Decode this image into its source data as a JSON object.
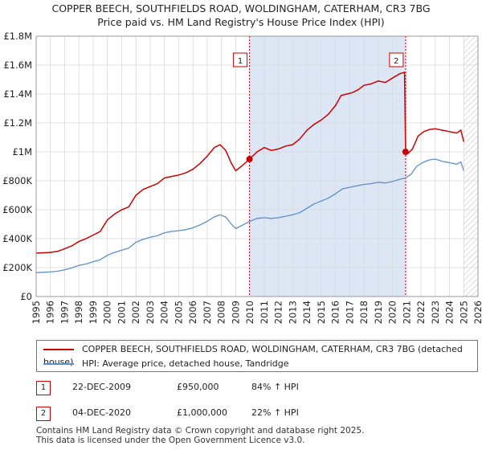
{
  "title": {
    "line1": "COPPER BEECH, SOUTHFIELDS ROAD, WOLDINGHAM, CATERHAM, CR3 7BG",
    "line2": "Price paid vs. HM Land Registry's House Price Index (HPI)"
  },
  "colors": {
    "property": "#cc0000",
    "hpi": "#5b8fc9",
    "shade": "#dce6f5",
    "grid": "#d9d9d9"
  },
  "chart_data": {
    "type": "line",
    "xlim": [
      1995,
      2026
    ],
    "ylim": [
      0,
      1800000
    ],
    "xticks": [
      "1995",
      "1996",
      "1997",
      "1998",
      "1999",
      "2000",
      "2001",
      "2002",
      "2003",
      "2004",
      "2005",
      "2006",
      "2007",
      "2008",
      "2009",
      "2010",
      "2011",
      "2012",
      "2013",
      "2014",
      "2015",
      "2016",
      "2017",
      "2018",
      "2019",
      "2020",
      "2021",
      "2022",
      "2023",
      "2024",
      "2025",
      "2026"
    ],
    "yticks": [
      {
        "value": 0,
        "label": "£0"
      },
      {
        "value": 200000,
        "label": "£200K"
      },
      {
        "value": 400000,
        "label": "£400K"
      },
      {
        "value": 600000,
        "label": "£600K"
      },
      {
        "value": 800000,
        "label": "£800K"
      },
      {
        "value": 1000000,
        "label": "£1M"
      },
      {
        "value": 1200000,
        "label": "£1.2M"
      },
      {
        "value": 1400000,
        "label": "£1.4M"
      },
      {
        "value": 1600000,
        "label": "£1.6M"
      },
      {
        "value": 1800000,
        "label": "£1.8M"
      }
    ],
    "shaded_region": [
      2009.97,
      2020.92
    ],
    "hatched_region": [
      2025.0,
      2026
    ],
    "markers": [
      {
        "label": "1",
        "x": 2009.97,
        "y": 950000
      },
      {
        "label": "2",
        "x": 2020.92,
        "y": 1000000
      }
    ],
    "series": [
      {
        "name": "COPPER BEECH, SOUTHFIELDS ROAD, WOLDINGHAM, CATERHAM, CR3 7BG (detached house)",
        "color": "#cc0000",
        "points": [
          [
            1995.0,
            300000
          ],
          [
            1996.0,
            305000
          ],
          [
            1996.5,
            312000
          ],
          [
            1997.0,
            330000
          ],
          [
            1997.5,
            350000
          ],
          [
            1998.0,
            380000
          ],
          [
            1998.5,
            400000
          ],
          [
            1999.0,
            425000
          ],
          [
            1999.5,
            450000
          ],
          [
            2000.0,
            530000
          ],
          [
            2000.5,
            570000
          ],
          [
            2001.0,
            600000
          ],
          [
            2001.5,
            620000
          ],
          [
            2002.0,
            700000
          ],
          [
            2002.5,
            740000
          ],
          [
            2003.0,
            760000
          ],
          [
            2003.5,
            780000
          ],
          [
            2004.0,
            820000
          ],
          [
            2004.5,
            830000
          ],
          [
            2005.0,
            840000
          ],
          [
            2005.5,
            855000
          ],
          [
            2006.0,
            880000
          ],
          [
            2006.5,
            920000
          ],
          [
            2007.0,
            970000
          ],
          [
            2007.5,
            1030000
          ],
          [
            2007.9,
            1050000
          ],
          [
            2008.3,
            1010000
          ],
          [
            2008.7,
            920000
          ],
          [
            2009.0,
            870000
          ],
          [
            2009.4,
            900000
          ],
          [
            2009.97,
            950000
          ],
          [
            2010.5,
            1000000
          ],
          [
            2011.0,
            1030000
          ],
          [
            2011.5,
            1010000
          ],
          [
            2012.0,
            1020000
          ],
          [
            2012.5,
            1040000
          ],
          [
            2013.0,
            1050000
          ],
          [
            2013.5,
            1090000
          ],
          [
            2014.0,
            1150000
          ],
          [
            2014.5,
            1190000
          ],
          [
            2015.0,
            1220000
          ],
          [
            2015.5,
            1260000
          ],
          [
            2016.0,
            1320000
          ],
          [
            2016.4,
            1390000
          ],
          [
            2016.8,
            1400000
          ],
          [
            2017.2,
            1410000
          ],
          [
            2017.6,
            1430000
          ],
          [
            2018.0,
            1460000
          ],
          [
            2018.5,
            1470000
          ],
          [
            2019.0,
            1490000
          ],
          [
            2019.5,
            1480000
          ],
          [
            2020.0,
            1510000
          ],
          [
            2020.5,
            1540000
          ],
          [
            2020.85,
            1550000
          ],
          [
            2020.92,
            1000000
          ],
          [
            2021.1,
            990000
          ],
          [
            2021.4,
            1020000
          ],
          [
            2021.8,
            1110000
          ],
          [
            2022.2,
            1140000
          ],
          [
            2022.6,
            1155000
          ],
          [
            2023.0,
            1160000
          ],
          [
            2023.5,
            1150000
          ],
          [
            2024.0,
            1140000
          ],
          [
            2024.5,
            1130000
          ],
          [
            2024.8,
            1150000
          ],
          [
            2025.0,
            1070000
          ]
        ]
      },
      {
        "name": "HPI: Average price, detached house, Tandridge",
        "color": "#5b8fc9",
        "points": [
          [
            1995.0,
            165000
          ],
          [
            1996.0,
            170000
          ],
          [
            1996.5,
            175000
          ],
          [
            1997.0,
            185000
          ],
          [
            1997.5,
            198000
          ],
          [
            1998.0,
            215000
          ],
          [
            1998.5,
            225000
          ],
          [
            1999.0,
            240000
          ],
          [
            1999.5,
            255000
          ],
          [
            2000.0,
            285000
          ],
          [
            2000.5,
            305000
          ],
          [
            2001.0,
            320000
          ],
          [
            2001.5,
            335000
          ],
          [
            2002.0,
            375000
          ],
          [
            2002.5,
            395000
          ],
          [
            2003.0,
            410000
          ],
          [
            2003.5,
            420000
          ],
          [
            2004.0,
            440000
          ],
          [
            2004.5,
            450000
          ],
          [
            2005.0,
            455000
          ],
          [
            2005.5,
            462000
          ],
          [
            2006.0,
            475000
          ],
          [
            2006.5,
            495000
          ],
          [
            2007.0,
            520000
          ],
          [
            2007.5,
            550000
          ],
          [
            2007.9,
            565000
          ],
          [
            2008.3,
            550000
          ],
          [
            2008.7,
            500000
          ],
          [
            2009.0,
            470000
          ],
          [
            2009.5,
            495000
          ],
          [
            2010.0,
            520000
          ],
          [
            2010.5,
            540000
          ],
          [
            2011.0,
            545000
          ],
          [
            2011.5,
            540000
          ],
          [
            2012.0,
            545000
          ],
          [
            2012.5,
            555000
          ],
          [
            2013.0,
            565000
          ],
          [
            2013.5,
            580000
          ],
          [
            2014.0,
            610000
          ],
          [
            2014.5,
            640000
          ],
          [
            2015.0,
            660000
          ],
          [
            2015.5,
            680000
          ],
          [
            2016.0,
            710000
          ],
          [
            2016.5,
            745000
          ],
          [
            2017.0,
            755000
          ],
          [
            2017.5,
            765000
          ],
          [
            2018.0,
            775000
          ],
          [
            2018.5,
            780000
          ],
          [
            2019.0,
            790000
          ],
          [
            2019.5,
            785000
          ],
          [
            2020.0,
            795000
          ],
          [
            2020.5,
            810000
          ],
          [
            2020.92,
            820000
          ],
          [
            2021.3,
            845000
          ],
          [
            2021.7,
            900000
          ],
          [
            2022.2,
            930000
          ],
          [
            2022.6,
            945000
          ],
          [
            2023.0,
            950000
          ],
          [
            2023.5,
            935000
          ],
          [
            2024.0,
            925000
          ],
          [
            2024.5,
            915000
          ],
          [
            2024.8,
            930000
          ],
          [
            2025.0,
            870000
          ]
        ]
      }
    ]
  },
  "legend": {
    "property_label": "COPPER BEECH, SOUTHFIELDS ROAD, WOLDINGHAM, CATERHAM, CR3 7BG (detached house)",
    "hpi_label": "HPI: Average price, detached house, Tandridge"
  },
  "transactions": [
    {
      "num": "1",
      "date": "22-DEC-2009",
      "price": "£950,000",
      "hpi": "84% ↑ HPI"
    },
    {
      "num": "2",
      "date": "04-DEC-2020",
      "price": "£1,000,000",
      "hpi": "22% ↑ HPI"
    }
  ],
  "footer": {
    "line1": "Contains HM Land Registry data © Crown copyright and database right 2025.",
    "line2": "This data is licensed under the Open Government Licence v3.0."
  }
}
